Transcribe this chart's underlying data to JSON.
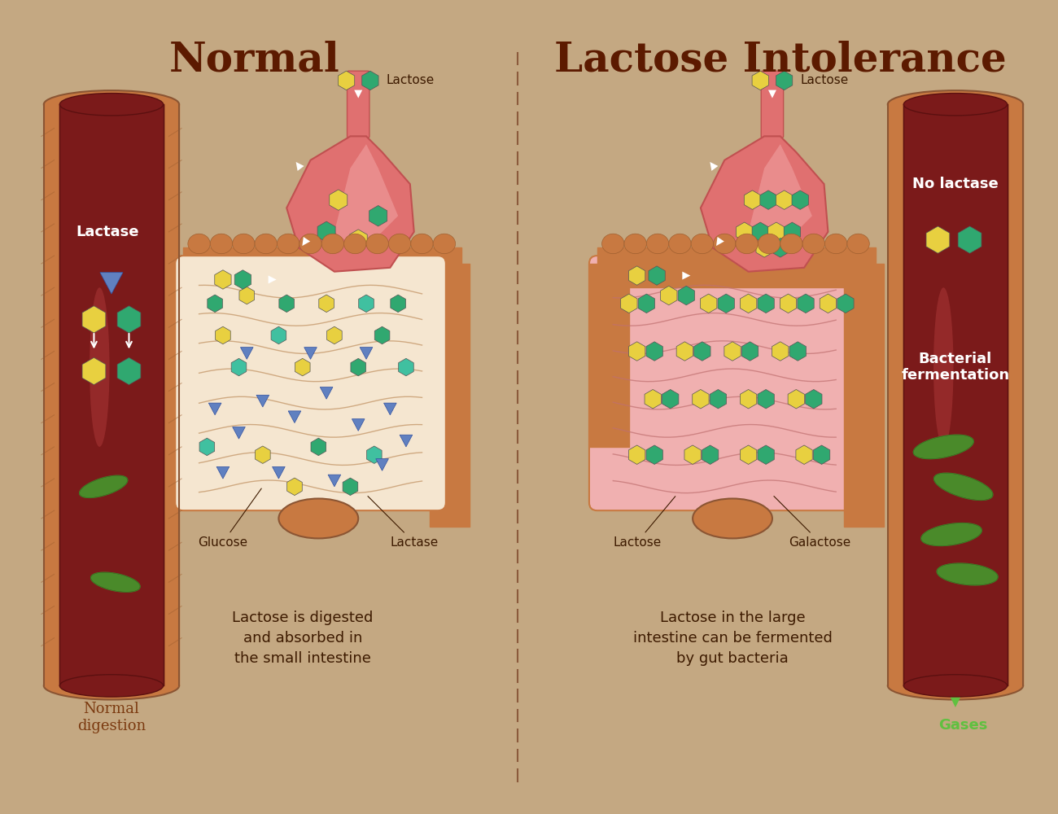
{
  "bg_color": "#C4A882",
  "title_normal": "Normal",
  "title_intolerance": "Lactose Intolerance",
  "title_color": "#5C1A00",
  "title_fontsize": 36,
  "label_fontsize": 13,
  "small_fontsize": 11,
  "desc_normal": "Lactose is digested\nand absorbed in\nthe small intestine",
  "desc_intolerance": "Lactose in the large\nintestine can be fermented\nby gut bacteria",
  "caption_normal": "Normal\ndigestion",
  "caption_intolerance_tube": "No lactase",
  "caption_bacterial": "Bacterial\nfermentation",
  "caption_gases": "Gases",
  "label_lactase_tube": "Lactase",
  "label_glucose": "Glucose",
  "label_lactase_intestine": "Lactase",
  "label_lactose_normal": "Lactose",
  "label_lactose_intolerance": "Lactose",
  "label_galactose": "Galactose",
  "label_lactose_tube_normal": "Lactose",
  "label_lactose_tube_intolerance": "Lactose",
  "intestine_outer": "#C87941",
  "intestine_inner": "#E8C49A",
  "intestine_lumen": "#F5E6D0",
  "stomach_color": "#E07070",
  "stomach_inner": "#F0A0A0",
  "tube_outer": "#C87941",
  "tube_dark_inner": "#7B1A1A",
  "tube_lumen_dark": "#3D0A0A",
  "bacteria_color": "#4A8A2A",
  "hex_yellow": "#E8D040",
  "hex_green": "#30A870",
  "hex_cyan": "#40C0A0",
  "arrow_white": "#FFFFFF",
  "arrow_green": "#60C040",
  "divider_color": "#8B5A3C",
  "text_dark": "#3D1A00",
  "text_white": "#FFFFFF",
  "triangle_blue": "#6080C0"
}
